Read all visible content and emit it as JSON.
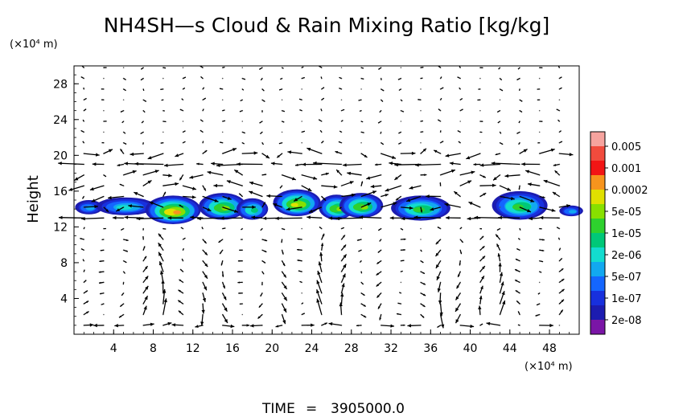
{
  "chart_data": {
    "type": "contour-vector",
    "title": "NH4SH—s Cloud & Rain Mixing Ratio [kg/kg]",
    "ylabel": "Height",
    "y_unit_label": "(×10⁴ m)",
    "x_unit_label": "(×10⁴ m)",
    "xlim": [
      0,
      51
    ],
    "ylim": [
      0,
      30
    ],
    "x_ticks": [
      4,
      8,
      12,
      16,
      20,
      24,
      28,
      32,
      36,
      40,
      44,
      48
    ],
    "y_ticks": [
      4,
      8,
      12,
      16,
      20,
      24,
      28
    ],
    "colorbar": {
      "labels": [
        "0.005",
        "0.001",
        "0.0002",
        "5e-05",
        "1e-05",
        "2e-06",
        "5e-07",
        "1e-07",
        "2e-08"
      ],
      "colors": [
        "#f6a39e",
        "#f14b3d",
        "#f21515",
        "#f7941d",
        "#e0e000",
        "#88e000",
        "#2ed12e",
        "#00c878",
        "#13dccf",
        "#12a8f0",
        "#1466ff",
        "#1830dd",
        "#1c1cb0",
        "#7a15a6"
      ]
    },
    "cloud_layer": {
      "y_range": [
        12.5,
        16.3
      ],
      "clusters": [
        {
          "x": 1.5,
          "y": 14.2,
          "rx": 1.4,
          "ry": 0.8,
          "intensity": 0.4
        },
        {
          "x": 5.2,
          "y": 14.3,
          "rx": 3.0,
          "ry": 1.0,
          "intensity": 0.45
        },
        {
          "x": 10.0,
          "y": 13.9,
          "rx": 2.8,
          "ry": 1.6,
          "intensity": 0.95
        },
        {
          "x": 15.0,
          "y": 14.3,
          "rx": 2.4,
          "ry": 1.5,
          "intensity": 0.75
        },
        {
          "x": 18.0,
          "y": 14.0,
          "rx": 1.6,
          "ry": 1.2,
          "intensity": 0.5
        },
        {
          "x": 22.5,
          "y": 14.7,
          "rx": 2.4,
          "ry": 1.5,
          "intensity": 0.8
        },
        {
          "x": 26.5,
          "y": 14.2,
          "rx": 1.8,
          "ry": 1.4,
          "intensity": 0.7
        },
        {
          "x": 29.0,
          "y": 14.4,
          "rx": 2.2,
          "ry": 1.4,
          "intensity": 0.75
        },
        {
          "x": 35.0,
          "y": 14.1,
          "rx": 3.0,
          "ry": 1.4,
          "intensity": 0.6
        },
        {
          "x": 45.0,
          "y": 14.4,
          "rx": 2.8,
          "ry": 1.6,
          "intensity": 0.65
        },
        {
          "x": 50.2,
          "y": 13.8,
          "rx": 1.2,
          "ry": 0.6,
          "intensity": 0.35
        }
      ]
    },
    "wind_field": {
      "grid_dx": 2,
      "grid_dy": 1.2,
      "jet_levels": [
        19.1,
        13.1
      ],
      "max_arrow_length": 3.2
    },
    "grid": "dotted"
  },
  "footer": {
    "time_label": "TIME",
    "time_eq": "=",
    "time_value": "3905000.0"
  }
}
